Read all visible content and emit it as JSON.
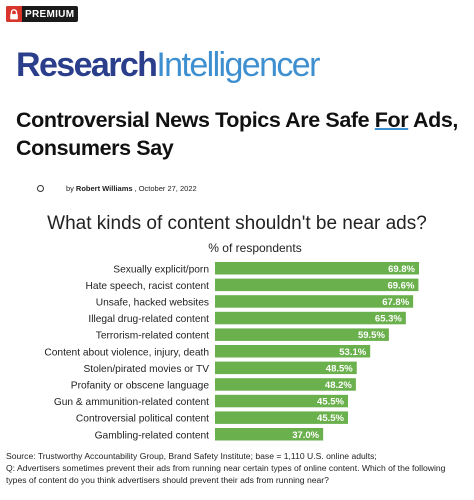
{
  "badge": {
    "label": "PREMIUM",
    "icon": "lock-icon",
    "color": "#d9362b"
  },
  "brand": {
    "part1": "Research",
    "part2": "Intelligencer",
    "color1": "#2a3e8c",
    "color2": "#3e8fd0"
  },
  "article": {
    "headline_before": "Controversial News Topics Are Safe ",
    "headline_underlined": "For",
    "headline_after": " Ads, Consumers Say",
    "by": "by",
    "author": "Robert Williams",
    "date": ", October 27, 2022"
  },
  "chart_data": {
    "type": "bar",
    "orientation": "horizontal",
    "title": "What kinds of content shouldn't be near ads?",
    "subtitle": "% of respondents",
    "categories": [
      "Sexually explicit/porn",
      "Hate speech, racist content",
      "Unsafe, hacked websites",
      "Illegal drug-related content",
      "Terrorism-related content",
      "Content about violence, injury, death",
      "Stolen/pirated movies or TV",
      "Profanity or obscene language",
      "Gun & ammunition-related content",
      "Controversial political content",
      "Gambling-related content"
    ],
    "values": [
      69.8,
      69.6,
      67.8,
      65.3,
      59.5,
      53.1,
      48.5,
      48.2,
      45.5,
      45.5,
      37.0
    ],
    "value_labels": [
      "69.8%",
      "69.6%",
      "67.8%",
      "65.3%",
      "59.5%",
      "53.1%",
      "48.5%",
      "48.2%",
      "45.5%",
      "45.5%",
      "37.0%"
    ],
    "bar_color": "#6ab04c",
    "xlim": [
      0,
      69.8
    ],
    "grid": false
  },
  "source": {
    "line1": "Source: Trustworthy Accountability Group, Brand Safety Institute; base = 1,110 U.S. online adults;",
    "line2": "Q: Advertisers sometimes prevent their ads from running near certain types of online content. Which of the following types of content do you think advertisers should prevent their ads from running near?"
  }
}
